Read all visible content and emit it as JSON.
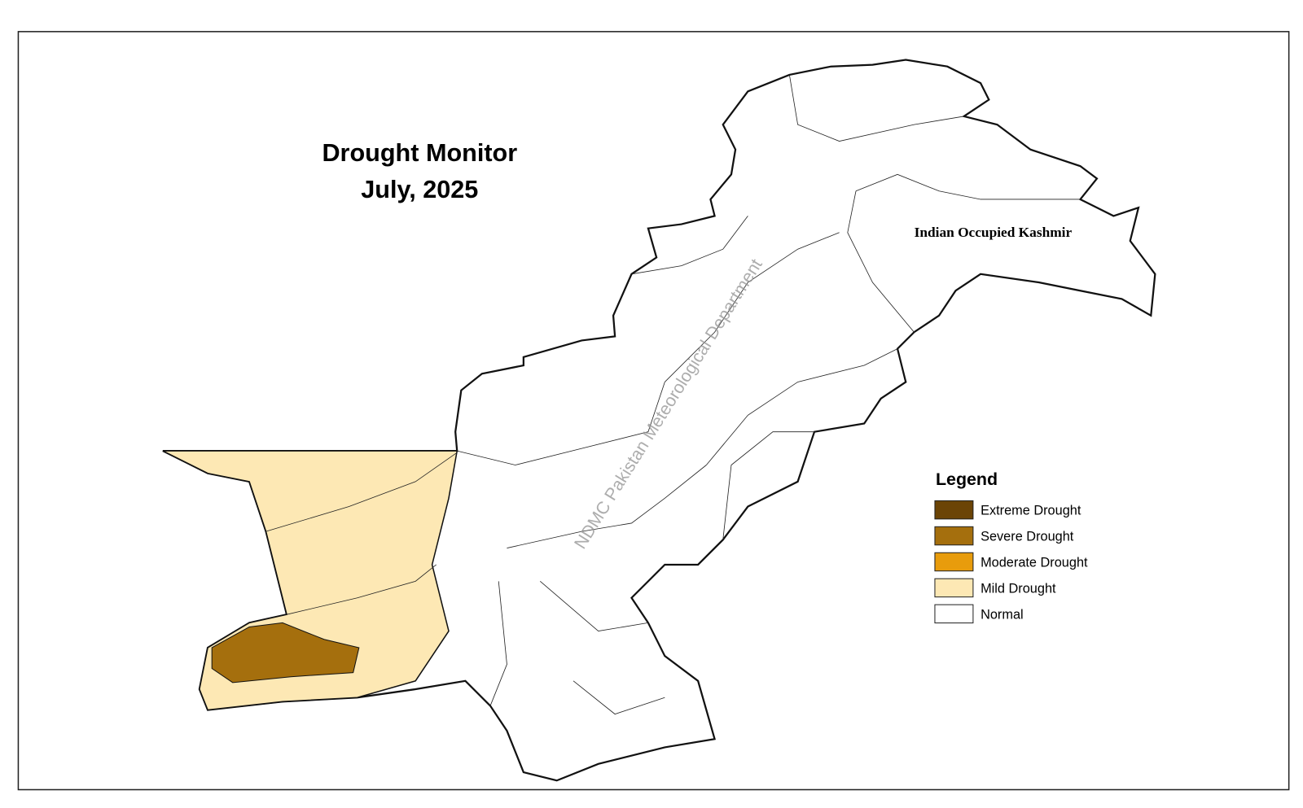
{
  "title": [
    "Drought Monitor",
    "July, 2025"
  ],
  "region_label": "Indian Occupied Kashmir",
  "watermark": "NDMC Pakistan Meteorological Department",
  "legend": {
    "title": "Legend",
    "items": [
      {
        "label": "Extreme Drought",
        "color": "#6b4406"
      },
      {
        "label": "Severe Drought",
        "color": "#a56f0d"
      },
      {
        "label": "Moderate Drought",
        "color": "#e89c0c"
      },
      {
        "label": "Mild Drought",
        "color": "#fde8b4"
      },
      {
        "label": "Normal",
        "color": "#ffffff"
      }
    ]
  }
}
